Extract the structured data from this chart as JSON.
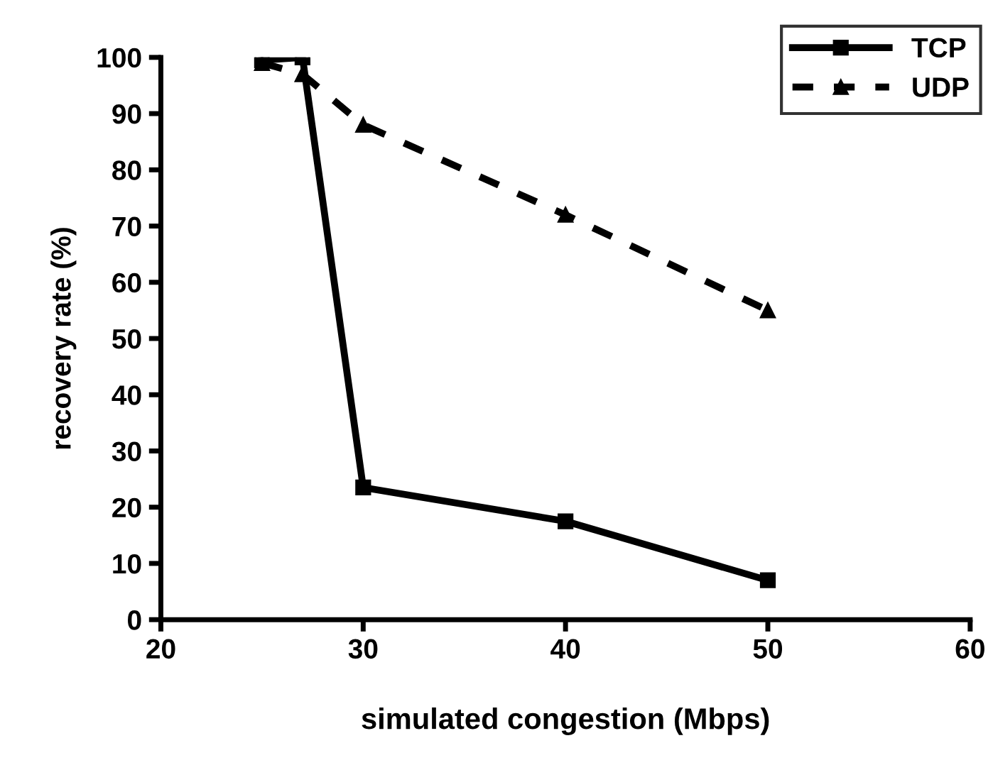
{
  "chart_data": {
    "type": "line",
    "xlabel": "simulated congestion (Mbps)",
    "ylabel": "recovery rate (%)",
    "xlim": [
      20,
      60
    ],
    "xticks": [
      20,
      30,
      40,
      50,
      60
    ],
    "ylim": [
      0,
      100
    ],
    "yticks": [
      0,
      10,
      20,
      30,
      40,
      50,
      60,
      70,
      80,
      90,
      100
    ],
    "grid": false,
    "legend": "top right",
    "series": [
      {
        "name": "TCP",
        "color": "#000000",
        "marker": "square",
        "line_style": "solid",
        "x": [
          25,
          27,
          30,
          40,
          50
        ],
        "values": [
          99.5,
          100,
          23.5,
          17.5,
          7
        ]
      },
      {
        "name": "UDP",
        "color": "#000000",
        "marker": "triangle",
        "line_style": "dashed",
        "x": [
          25,
          27,
          30,
          40,
          50
        ],
        "values": [
          99,
          97,
          88,
          72,
          55
        ]
      }
    ]
  }
}
